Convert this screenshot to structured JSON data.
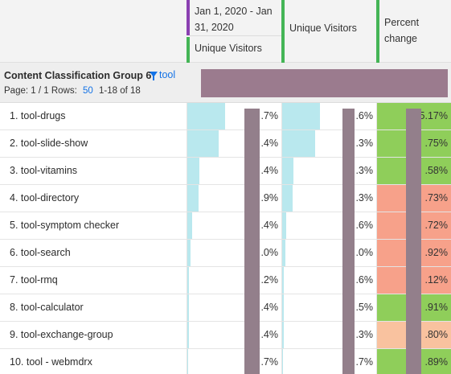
{
  "header": {
    "col1": {
      "date_range": "Jan 1, 2020 - Jan 31, 2020",
      "metric": "Unique Visitors"
    },
    "col2": {
      "metric": "Unique Visitors"
    },
    "col3": {
      "metric": "Percent change"
    }
  },
  "dimension": {
    "title": "Content Classification Group 6",
    "filter_label": "tool",
    "page_label": "Page: 1 / 1",
    "rows_label": "Rows:",
    "rows_value": "50",
    "range_label": "1-18 of 18"
  },
  "colors": {
    "bar": "#b9e8ee",
    "positive": "#8fce5a",
    "negative": "#f7a18a",
    "neutral": "#f9c29f",
    "mask": "#937f8b"
  },
  "rows": [
    {
      "label": "1. tool-drugs",
      "v1": ".7%",
      "bar1": 0.4,
      "v2": ".6%",
      "bar2": 0.4,
      "v3": "5.17%",
      "trend": "positive"
    },
    {
      "label": "2. tool-slide-show",
      "v1": ".4%",
      "bar1": 0.33,
      "v2": ".3%",
      "bar2": 0.35,
      "v3": ".75%",
      "trend": "positive"
    },
    {
      "label": "3. tool-vitamins",
      "v1": ".4%",
      "bar1": 0.13,
      "v2": ".3%",
      "bar2": 0.12,
      "v3": ".58%",
      "trend": "positive"
    },
    {
      "label": "4. tool-directory",
      "v1": ".9%",
      "bar1": 0.12,
      "v2": ".3%",
      "bar2": 0.11,
      "v3": ".73%",
      "trend": "negative"
    },
    {
      "label": "5. tool-symptom checker",
      "v1": ".4%",
      "bar1": 0.05,
      "v2": ".6%",
      "bar2": 0.04,
      "v3": ".72%",
      "trend": "negative"
    },
    {
      "label": "6. tool-search",
      "v1": ".0%",
      "bar1": 0.03,
      "v2": ".0%",
      "bar2": 0.03,
      "v3": ".92%",
      "trend": "negative"
    },
    {
      "label": "7. tool-rmq",
      "v1": ".2%",
      "bar1": 0.02,
      "v2": ".6%",
      "bar2": 0.02,
      "v3": ".12%",
      "trend": "negative"
    },
    {
      "label": "8. tool-calculator",
      "v1": ".4%",
      "bar1": 0.02,
      "v2": ".5%",
      "bar2": 0.02,
      "v3": ".91%",
      "trend": "positive"
    },
    {
      "label": "9. tool-exchange-group",
      "v1": ".4%",
      "bar1": 0.02,
      "v2": ".3%",
      "bar2": 0.02,
      "v3": ".80%",
      "trend": "neutral"
    },
    {
      "label": "10. tool - webmdrx",
      "v1": ".7%",
      "bar1": 0.01,
      "v2": ".7%",
      "bar2": 0.01,
      "v3": ".89%",
      "trend": "positive"
    }
  ]
}
